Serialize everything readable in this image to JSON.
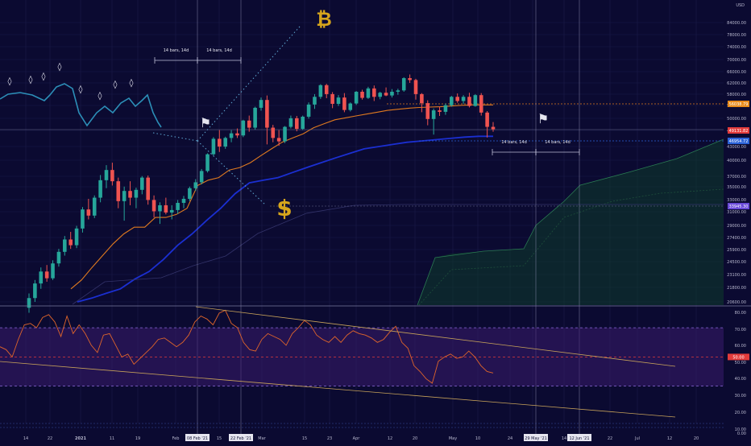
{
  "theme": {
    "bg": "#0b0a31",
    "grid": "#1b1b4a",
    "up": "#26a69a",
    "down": "#ef5350",
    "kijun": "#e07a1f",
    "blue_line": "#1b2fd1",
    "cloud": "#0f3d2a",
    "rsi_band": "#3a1b6b",
    "rsi_line": "#e0652a",
    "trend": "#c8a35a",
    "vline": "#9a9abf",
    "crosshair": "#c9c9c9",
    "price_badge_orange": "#e88a1a",
    "price_badge_red": "#e23b3b",
    "price_badge_blue": "#2a62d8",
    "price_badge_purple": "#6a4bd8",
    "rsi_badge_red": "#e23b3b",
    "bitcoin_symbol": "#d6a51c",
    "dollar_symbol": "#d6a51c"
  },
  "axis": {
    "currency": "USD",
    "price_ticks": [
      "84000.00",
      "78000.00",
      "74000.00",
      "70000.00",
      "66000.00",
      "62000.00",
      "58000.00",
      "54000.00",
      "50000.00",
      "46000.00",
      "43000.00",
      "40000.00",
      "37000.00",
      "35000.00",
      "33000.00",
      "31000.00",
      "29000.00",
      "27400.00",
      "25900.00",
      "24500.00",
      "23100.00",
      "21800.00",
      "20600.00"
    ],
    "price_badges": [
      "56038.79",
      "49131.82",
      "46954.72",
      "33945.30"
    ],
    "rsi_ticks": [
      "80.00",
      "70.00",
      "60.00",
      "50.00",
      "40.00",
      "30.00",
      "20.00",
      "10.00",
      "0.00"
    ],
    "rsi_badge": "50.00",
    "time_ticks": [
      "14",
      "22",
      "2021",
      "11",
      "19",
      "Feb",
      "15",
      "Mar",
      "15",
      "23",
      "Apr",
      "12",
      "20",
      "May",
      "10",
      "24",
      "7",
      "14",
      "22",
      "Jul",
      "12",
      "20"
    ],
    "time_badges": [
      "08 Feb '21",
      "22 Feb '21",
      "29 May '21",
      "12 Jun '21"
    ]
  },
  "annotations": {
    "bars_labels": [
      "14 bars, 14d",
      "14 bars, 14d",
      "14 bars, 14d",
      "14 bars, 14d"
    ],
    "bitcoin_symbol": "₿",
    "dollar_symbol": "$",
    "flag_glyph": "⚑",
    "drop_glyph": "◊"
  },
  "chart_data": {
    "type": "candlestick",
    "series": [
      {
        "type": "candlestick",
        "ohlc": [
          [
            20000,
            21500,
            19500,
            21000
          ],
          [
            21000,
            23000,
            20600,
            22600
          ],
          [
            22600,
            24500,
            22000,
            24000
          ],
          [
            24000,
            24800,
            22800,
            23200
          ],
          [
            23200,
            25400,
            23000,
            25000
          ],
          [
            25000,
            26900,
            24600,
            26500
          ],
          [
            26500,
            28700,
            26000,
            28200
          ],
          [
            28200,
            29300,
            26900,
            27400
          ],
          [
            27400,
            30200,
            27000,
            29800
          ],
          [
            29800,
            33200,
            29200,
            32800
          ],
          [
            32800,
            34600,
            31200,
            31800
          ],
          [
            31800,
            35200,
            31400,
            34800
          ],
          [
            34800,
            39000,
            34000,
            38000
          ],
          [
            38000,
            41000,
            36500,
            40000
          ],
          [
            40000,
            41500,
            37000,
            37800
          ],
          [
            37800,
            38500,
            33000,
            34200
          ],
          [
            34200,
            36800,
            31000,
            36000
          ],
          [
            36000,
            37800,
            33500,
            34800
          ],
          [
            34800,
            36600,
            33000,
            36200
          ],
          [
            36200,
            38800,
            35400,
            38500
          ],
          [
            38500,
            38900,
            33600,
            34400
          ],
          [
            34400,
            35200,
            31500,
            32500
          ],
          [
            32500,
            34000,
            30500,
            33500
          ],
          [
            33500,
            34800,
            32000,
            32300
          ],
          [
            32300,
            33500,
            31200,
            32700
          ],
          [
            32700,
            34400,
            32100,
            33900
          ],
          [
            33900,
            35100,
            33000,
            34600
          ],
          [
            34600,
            36800,
            34200,
            36500
          ],
          [
            36500,
            38200,
            36000,
            37600
          ],
          [
            37600,
            40200,
            37200,
            39800
          ],
          [
            39800,
            43500,
            39500,
            43300
          ],
          [
            43300,
            47200,
            43000,
            46800
          ],
          [
            46800,
            48900,
            43800,
            45000
          ],
          [
            45000,
            47300,
            44500,
            47000
          ],
          [
            47000,
            48900,
            46000,
            48100
          ],
          [
            48100,
            49300,
            47000,
            47600
          ],
          [
            47600,
            51500,
            47200,
            51300
          ],
          [
            51300,
            52600,
            48500,
            49500
          ],
          [
            49500,
            55000,
            49000,
            54700
          ],
          [
            54700,
            57600,
            53900,
            56900
          ],
          [
            56900,
            58200,
            45500,
            49500
          ],
          [
            49500,
            50200,
            46000,
            47000
          ],
          [
            47000,
            48900,
            45200,
            46200
          ],
          [
            46200,
            49900,
            45800,
            49700
          ],
          [
            49700,
            52600,
            49300,
            51900
          ],
          [
            51900,
            52500,
            48600,
            49200
          ],
          [
            49200,
            52600,
            48900,
            52300
          ],
          [
            52300,
            56200,
            51800,
            55600
          ],
          [
            55600,
            58600,
            54400,
            57800
          ],
          [
            57800,
            61600,
            57200,
            61300
          ],
          [
            61300,
            61700,
            57400,
            58600
          ],
          [
            58600,
            59200,
            54600,
            55800
          ],
          [
            55800,
            58300,
            55200,
            57600
          ],
          [
            57600,
            58900,
            53500,
            54100
          ],
          [
            54100,
            56200,
            53700,
            55900
          ],
          [
            55900,
            59500,
            55500,
            59300
          ],
          [
            59300,
            59900,
            57000,
            57500
          ],
          [
            57500,
            60800,
            57200,
            60300
          ],
          [
            60300,
            61200,
            56600,
            57800
          ],
          [
            57800,
            59300,
            57100,
            59000
          ],
          [
            59000,
            60600,
            58000,
            58200
          ],
          [
            58200,
            60100,
            57600,
            59300
          ],
          [
            59300,
            60200,
            58400,
            59700
          ],
          [
            59700,
            63800,
            59300,
            63500
          ],
          [
            63500,
            64700,
            62000,
            62900
          ],
          [
            62900,
            63300,
            57000,
            58600
          ],
          [
            58600,
            58900,
            53500,
            56000
          ],
          [
            56000,
            56800,
            50100,
            51700
          ],
          [
            51700,
            54500,
            47800,
            54000
          ],
          [
            54000,
            55000,
            52500,
            53600
          ],
          [
            53600,
            55900,
            52800,
            55400
          ],
          [
            55400,
            58100,
            55000,
            57800
          ],
          [
            57800,
            58800,
            56100,
            56600
          ],
          [
            56600,
            58300,
            55800,
            57800
          ],
          [
            57800,
            59000,
            54800,
            55200
          ],
          [
            55200,
            58600,
            55000,
            58300
          ],
          [
            58300,
            58900,
            52600,
            53400
          ],
          [
            53400,
            53800,
            47100,
            49700
          ],
          [
            49700,
            50900,
            48500,
            49100
          ]
        ]
      },
      {
        "name": "",
        "type": "line",
        "role": "kijun",
        "values": [
          22000,
          23000,
          24500,
          26000,
          27600,
          29000,
          30000,
          30000,
          31500,
          31500,
          32000,
          33000,
          37000,
          38000,
          38500,
          40000,
          40500,
          41500,
          43000,
          44500,
          46000,
          47000,
          48000,
          49500,
          50500,
          51500,
          52000,
          52500,
          53000,
          53500,
          54000,
          54300,
          54600,
          54800,
          54900,
          55000,
          55200,
          55400,
          55500,
          55500,
          55500
        ]
      },
      {
        "name": "",
        "type": "line",
        "role": "blue",
        "values": [
          20600,
          21000,
          21500,
          22000,
          23100,
          24000,
          25500,
          27400,
          29000,
          31000,
          33000,
          35500,
          37500,
          38000,
          38500,
          39500,
          40500,
          41500,
          42500,
          43500,
          44500,
          45000,
          45500,
          46000,
          46300,
          46600,
          46900,
          47200,
          47400,
          47400
        ]
      },
      {
        "name": "",
        "type": "cloud",
        "role": "future-cloud"
      },
      {
        "name": "",
        "type": "rsi",
        "values": [
          57,
          55,
          50,
          62,
          72,
          73,
          70,
          77,
          79,
          74,
          64,
          78,
          66,
          72,
          66,
          58,
          53,
          65,
          66,
          58,
          50,
          52,
          45,
          49,
          53,
          57,
          62,
          63,
          60,
          57,
          60,
          65,
          74,
          78,
          76,
          72,
          80,
          82,
          73,
          70,
          60,
          55,
          54,
          62,
          66,
          64,
          62,
          58,
          66,
          70,
          75,
          72,
          65,
          62,
          60,
          64,
          60,
          65,
          68,
          66,
          65,
          63,
          60,
          62,
          67,
          71,
          60,
          56,
          44,
          40,
          35,
          32,
          47,
          50,
          52,
          49,
          50,
          54,
          50,
          44,
          40,
          39
        ]
      }
    ],
    "ylim": [
      20600,
      84000
    ],
    "rsi_ylim": [
      0,
      80
    ],
    "scale": "log"
  }
}
